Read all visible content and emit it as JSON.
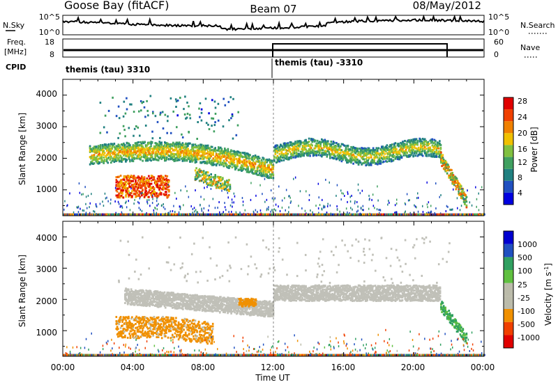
{
  "header": {
    "station": "Goose Bay (fitACF)",
    "beam": "Beam 07",
    "date": "08/May/2012"
  },
  "strip_labels": {
    "nsky": "N.Sky",
    "nsearch": "N.Search",
    "freq_line1": "Freq.",
    "freq_line2": "[MHz]",
    "nave": "Nave",
    "cpid": "CPID",
    "nsky_ticks": [
      "10^5",
      "10^0"
    ],
    "nsearch_ticks": [
      "10^5",
      "10^0"
    ],
    "freq_ticks": [
      "18",
      "8"
    ],
    "nave_ticks": [
      "60",
      "0"
    ]
  },
  "cpid": {
    "segments": [
      {
        "label": "themis (tau) 3310",
        "start_hour": 0
      },
      {
        "label": "themis (tau) -3310",
        "start_hour": 12
      }
    ]
  },
  "x_axis": {
    "label": "Time UT",
    "ticks": [
      "00:00",
      "04:00",
      "08:00",
      "12:00",
      "16:00",
      "20:00",
      "00:00"
    ]
  },
  "panels": [
    {
      "id": "power",
      "ylabel": "Slant Range [km]",
      "yticks": [
        "4000",
        "3000",
        "2000",
        "1000"
      ],
      "colorbar_label": "Power [dB]",
      "colorbar_ticks": [
        "28",
        "24",
        "20",
        "16",
        "12",
        "8",
        "4"
      ]
    },
    {
      "id": "velocity",
      "ylabel": "Slant Range [km]",
      "yticks": [
        "4000",
        "3000",
        "2000",
        "1000"
      ],
      "colorbar_label": "Velocity [m s",
      "colorbar_label_sup": "-1",
      "colorbar_label_end": "]",
      "colorbar_ticks": [
        "1000",
        "500",
        "100",
        "25",
        "-25",
        "-100",
        "-500",
        "-1000"
      ]
    }
  ],
  "colors": {
    "power_scale": [
      "#0000e0",
      "#2050c0",
      "#208080",
      "#40a060",
      "#80c040",
      "#f0c000",
      "#f08000",
      "#f04000",
      "#e00000"
    ],
    "velocity_scale": [
      "#e00000",
      "#f04000",
      "#f09000",
      "#bbbbaa",
      "#bbbbaa",
      "#60c040",
      "#30a060",
      "#2050c0",
      "#0000d0"
    ],
    "ground_scatter": "#c0c0b8"
  },
  "chart_data": [
    {
      "type": "heatmap",
      "title": "Goose Bay (fitACF) Beam 07 08/May/2012",
      "quantity": "Power",
      "units": "dB",
      "xlabel": "Time UT",
      "ylabel": "Slant Range [km]",
      "xlim_hours": [
        0,
        24
      ],
      "ylim_km": [
        180,
        4500
      ],
      "colorbar_range": [
        0,
        30
      ],
      "features": [
        {
          "name": "evening band",
          "t_start": 1.5,
          "t_end": 12.0,
          "range_start": 2100,
          "range_end": 1500,
          "power": 12
        },
        {
          "name": "strong patch",
          "t_start": 3.0,
          "t_end": 6.0,
          "range_center": 1100,
          "power": 26
        },
        {
          "name": "morning band",
          "t_start": 12.0,
          "t_end": 21.5,
          "range_center": 2200,
          "power": 14
        },
        {
          "name": "descending tail",
          "t_start": 21.5,
          "t_end": 23.0,
          "range_start": 2000,
          "range_end": 600,
          "power": 20
        }
      ]
    },
    {
      "type": "heatmap",
      "quantity": "Velocity",
      "units": "m s^-1",
      "xlabel": "Time UT",
      "ylabel": "Slant Range [km]",
      "xlim_hours": [
        0,
        24
      ],
      "ylim_km": [
        180,
        4500
      ],
      "colorbar_range": [
        -1000,
        1000
      ],
      "features": [
        {
          "name": "ground-scatter band",
          "t_start": 3.5,
          "t_end": 21.5,
          "range_center": 2100,
          "velocity": 0
        },
        {
          "name": "negative patch",
          "t_start": 3.0,
          "t_end": 8.5,
          "range_center": 1100,
          "velocity": -250
        },
        {
          "name": "negative blob",
          "t_start": 10.0,
          "t_end": 11.0,
          "range_center": 1900,
          "velocity": -250
        },
        {
          "name": "positive tail",
          "t_start": 21.5,
          "t_end": 23.0,
          "range_start": 1800,
          "range_end": 700,
          "velocity": 60
        }
      ]
    }
  ]
}
